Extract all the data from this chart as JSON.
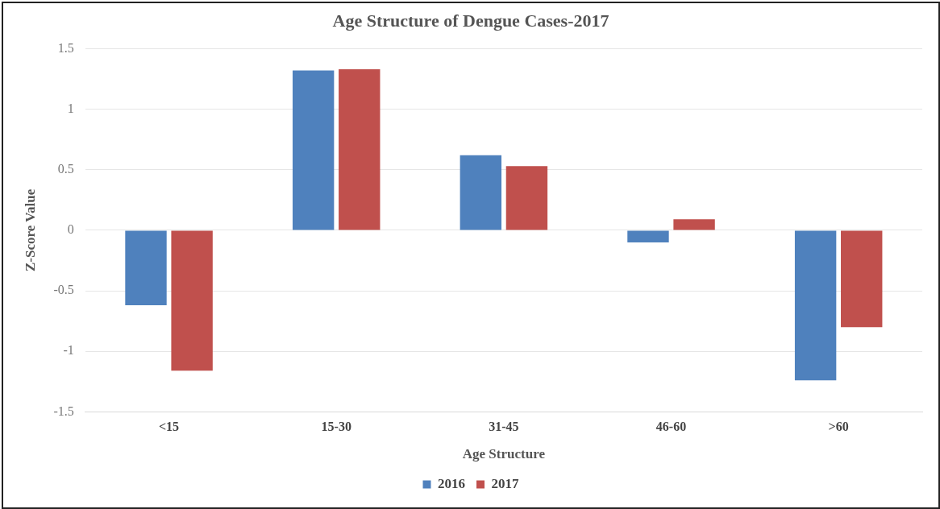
{
  "chart_data": {
    "type": "bar",
    "title": "Age Structure of Dengue Cases-2017",
    "xlabel": "Age Structure",
    "ylabel": "Z-Score Value",
    "categories": [
      "<15",
      "15-30",
      "31-45",
      "46-60",
      ">60"
    ],
    "series": [
      {
        "name": "2016",
        "color": "#4f81bd",
        "values": [
          -0.62,
          1.32,
          0.62,
          -0.1,
          -1.24
        ]
      },
      {
        "name": "2017",
        "color": "#c0504d",
        "values": [
          -1.16,
          1.33,
          0.53,
          0.09,
          -0.8
        ]
      }
    ],
    "ylim": [
      -1.5,
      1.5
    ],
    "yticks": [
      -1.5,
      -1,
      -0.5,
      0,
      0.5,
      1,
      1.5
    ],
    "grid": "y",
    "legend": "bottom"
  }
}
